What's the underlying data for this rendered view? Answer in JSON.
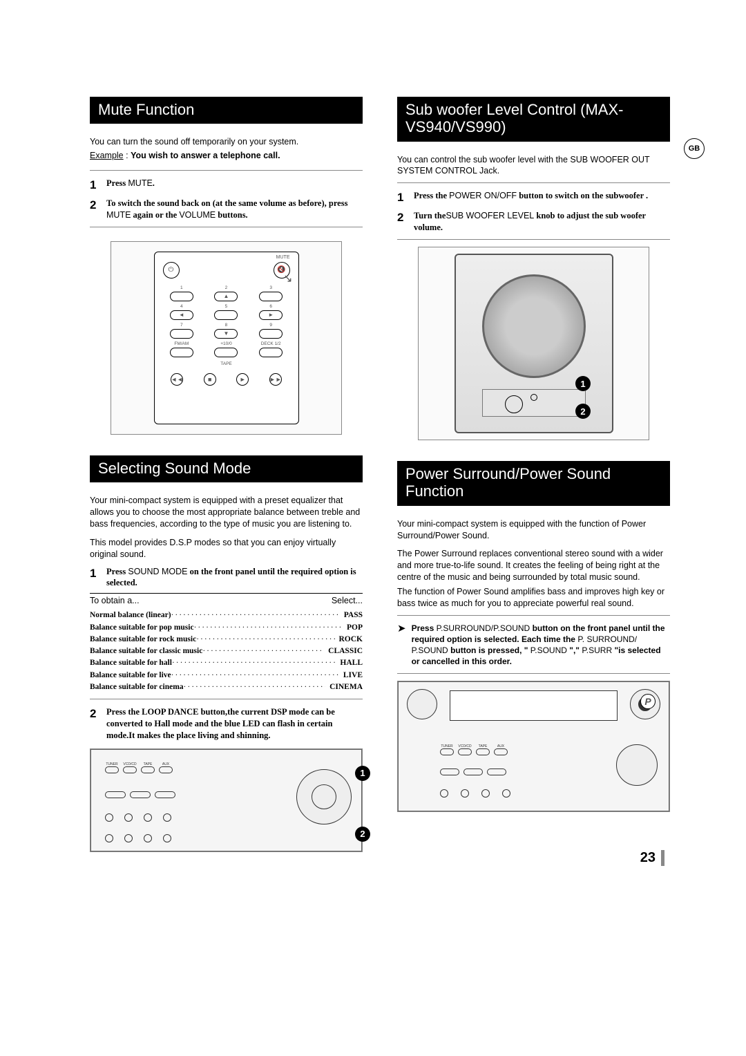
{
  "gb_badge": "GB",
  "page_number": "23",
  "left": {
    "mute": {
      "title": "Mute Function",
      "intro": "You can turn the sound off temporarily on your system.",
      "example_label": "Example",
      "example_text": "You wish to answer a telephone call.",
      "steps": [
        {
          "n": "1",
          "bold_pre": "Press ",
          "sans": "MUTE",
          "bold_post": "."
        },
        {
          "n": "2",
          "bold_pre": "To switch the sound back on (at the same volume as before), press ",
          "sans": "MUTE",
          "mid": " again or the ",
          "sans2": "VOLUME",
          "bold_post": " buttons."
        }
      ],
      "remote": {
        "mute_label": "MUTE",
        "nums": [
          "1",
          "2",
          "3",
          "4",
          "5",
          "6",
          "7",
          "8",
          "9"
        ],
        "arrows": [
          "▲",
          "",
          "",
          "◄",
          "",
          "►",
          "",
          "▼",
          ""
        ],
        "bottom_labels": [
          "FM/AM",
          "+10/0",
          "DECK 1/2"
        ],
        "tape": "TAPE",
        "transport": [
          "◄◄",
          "■",
          "►",
          "►►"
        ]
      }
    },
    "sound": {
      "title": "Selecting Sound Mode",
      "p1": "Your mini-compact system is equipped with a preset equalizer that allows you to choose the most appropriate balance between treble and bass frequencies, according to the type of music you are listening to.",
      "p2": "This model provides D.S.P modes so that you can enjoy virtually original sound.",
      "step1": {
        "n": "1",
        "pre": "Press ",
        "sans": "SOUND MODE",
        "post": " on the front panel until the required option is selected."
      },
      "table_head_l": "To obtain a...",
      "table_head_r": "Select...",
      "options": [
        {
          "l": "Normal balance (linear)",
          "v": "PASS"
        },
        {
          "l": "Balance suitable for pop music",
          "v": "POP"
        },
        {
          "l": "Balance suitable for rock music",
          "v": "ROCK"
        },
        {
          "l": "Balance suitable for classic music",
          "v": "CLASSIC"
        },
        {
          "l": "Balance suitable for hall",
          "v": "HALL"
        },
        {
          "l": "Balance suitable for live",
          "v": "LIVE"
        },
        {
          "l": "Balance suitable for cinema",
          "v": "CINEMA"
        }
      ],
      "step2": {
        "n": "2",
        "txt": "Press the LOOP DANCE button,the current DSP mode can be converted to Hall mode and the blue LED can flash in certain mode.It makes the place living and shinning."
      }
    }
  },
  "right": {
    "subw": {
      "title": "Sub woofer Level Control (MAX-VS940/VS990)",
      "intro": "You can control the sub woofer level with the SUB WOOFER OUT SYSTEM CONTROL Jack.",
      "steps": [
        {
          "n": "1",
          "pre": "Press the ",
          "sans": "POWER ON/OFF",
          "post": " button to switch on the subwoofer ."
        },
        {
          "n": "2",
          "pre": "Turn the",
          "sans": "SUB WOOFER LEVEL",
          "post": "  knob to adjust the sub woofer volume."
        }
      ]
    },
    "ps": {
      "title": "Power Surround/Power Sound Function",
      "p1": "Your mini-compact system is equipped with the function of Power Surround/Power Sound.",
      "p2": "The Power Surround replaces conventional stereo sound with a wider and more true-to-life sound. It creates the feeling of being right at the centre of the music and being surrounded by total music sound.",
      "p3": "The function of Power Sound amplifies bass and improves high key or bass twice as much for you to appreciate powerful real sound.",
      "bullet_pre": "Press",
      "bullet_s1": "P.SURROUND/P.SOUND",
      "bullet_mid1": "   button on the front panel until the required option is selected. Each time the",
      "bullet_s2": "P. SURROUND/ P.SOUND",
      "bullet_mid2": "  button is pressed, \"",
      "bullet_s3": "P.SOUND",
      "bullet_mid3": "\",\"",
      "bullet_s4": "P.SURR",
      "bullet_post": " \"is selected or cancelled in this order."
    }
  },
  "colors": {
    "header_bg": "#000000",
    "header_fg": "#ffffff"
  }
}
